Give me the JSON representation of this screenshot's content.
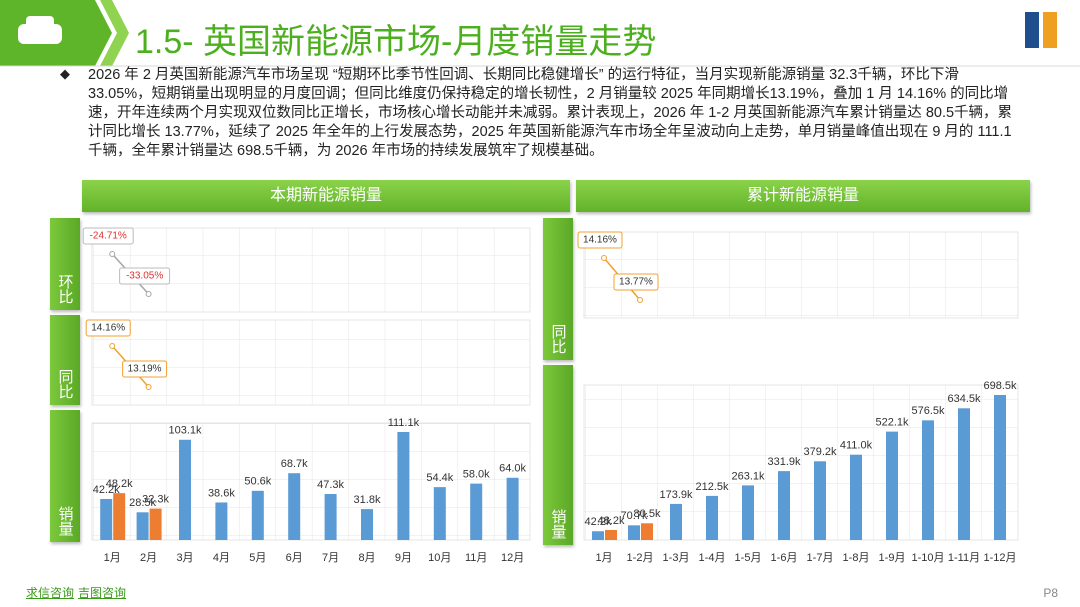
{
  "header": {
    "title": "1.5- 英国新能源市场-月度销量走势"
  },
  "summary": "2026 年 2 月英国新能源汽车市场呈现 “短期环比季节性回调、长期同比稳健增长” 的运行特征，当月实现新能源销量 32.3千辆，环比下滑 33.05%，短期销量出现明显的月度回调；但同比维度仍保持稳定的增长韧性，2 月销量较 2025 年同期增长13.19%，叠加 1 月 14.16% 的同比增速，开年连续两个月实现双位数同比正增长，市场核心增长动能并未减弱。累计表现上，2026 年 1-2 月英国新能源汽车累计销量达 80.5千辆，累计同比增长 13.77%，延续了 2025 年全年的上行发展态势，2025 年英国新能源汽车市场全年呈波动向上走势，单月销量峰值出现在 9 月的 111.1千辆，全年累计销量达 698.5千辆，为 2026 年市场的持续发展筑牢了规模基础。",
  "panels": [
    {
      "title": "本期新能源销量",
      "tabs": [
        "环比",
        "同比",
        "销量"
      ]
    },
    {
      "title": "累计新能源销量",
      "tabs": [
        "同比",
        "销量"
      ]
    }
  ],
  "footer": {
    "sources": [
      "求信咨询",
      "吉图咨询"
    ],
    "page": "P8"
  },
  "chart_data": [
    {
      "type": "line",
      "series": [
        {
          "color": "#a6a6a6",
          "values": [
            -24.71,
            -33.05
          ],
          "value_labels": [
            "-24.71%",
            "-33.05%"
          ]
        }
      ]
    },
    {
      "type": "line",
      "series": [
        {
          "color": "#f0a030",
          "values": [
            14.16,
            13.19
          ],
          "value_labels": [
            "14.16%",
            "13.19%"
          ]
        }
      ]
    },
    {
      "type": "bar",
      "categories": [
        "1月",
        "2月",
        "3月",
        "4月",
        "5月",
        "6月",
        "7月",
        "8月",
        "9月",
        "10月",
        "11月",
        "12月"
      ],
      "series": [
        {
          "color": "#5b9bd5",
          "values": [
            42.2,
            28.5,
            103.1,
            38.6,
            50.6,
            68.7,
            47.3,
            31.8,
            111.1,
            54.4,
            58.0,
            64.0
          ],
          "value_labels": [
            "42.2k",
            "28.5k",
            "103.1k",
            "38.6k",
            "50.6k",
            "68.7k",
            "47.3k",
            "31.8k",
            "111.1k",
            "54.4k",
            "58.0k",
            "64.0k"
          ]
        },
        {
          "color": "#ed7d31",
          "values": [
            48.2,
            32.3,
            null,
            null,
            null,
            null,
            null,
            null,
            null,
            null,
            null,
            null
          ],
          "value_labels": [
            "48.2k",
            "32.3k",
            null,
            null,
            null,
            null,
            null,
            null,
            null,
            null,
            null,
            null
          ]
        }
      ]
    },
    {
      "type": "line",
      "series": [
        {
          "color": "#f0a030",
          "values": [
            14.16,
            13.77
          ],
          "value_labels": [
            "14.16%",
            "13.77%"
          ]
        }
      ]
    },
    {
      "type": "bar",
      "categories": [
        "1月",
        "1-2月",
        "1-3月",
        "1-4月",
        "1-5月",
        "1-6月",
        "1-7月",
        "1-8月",
        "1-9月",
        "1-10月",
        "1-11月",
        "1-12月"
      ],
      "series": [
        {
          "color": "#5b9bd5",
          "values": [
            42.2,
            70.7,
            173.9,
            212.5,
            263.1,
            331.9,
            379.2,
            411.0,
            522.1,
            576.5,
            634.5,
            698.5
          ],
          "value_labels": [
            "42.2k",
            "70.7k",
            "173.9k",
            "212.5k",
            "263.1k",
            "331.9k",
            "379.2k",
            "411.0k",
            "522.1k",
            "576.5k",
            "634.5k",
            "698.5k"
          ]
        },
        {
          "color": "#ed7d31",
          "values": [
            48.2,
            80.5,
            null,
            null,
            null,
            null,
            null,
            null,
            null,
            null,
            null,
            null
          ],
          "value_labels": [
            "48.2k",
            "80.5k",
            null,
            null,
            null,
            null,
            null,
            null,
            null,
            null,
            null,
            null
          ]
        }
      ]
    }
  ]
}
